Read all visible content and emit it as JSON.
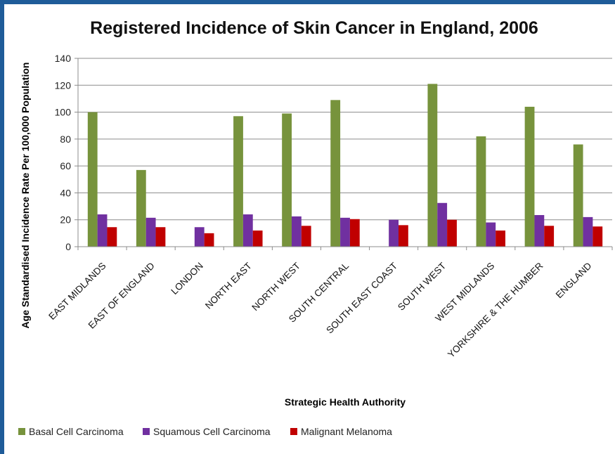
{
  "chart_data": {
    "type": "bar",
    "title": "Registered Incidence of Skin Cancer in England, 2006",
    "xlabel": "Strategic Health Authority",
    "ylabel": "Age Standardised Incidence Rate Per 100,000 Population",
    "ylim": [
      0,
      140
    ],
    "yticks": [
      0,
      20,
      40,
      60,
      80,
      100,
      120,
      140
    ],
    "grid": true,
    "legend_position": "bottom",
    "categories": [
      "EAST MIDLANDS",
      "EAST OF ENGLAND",
      "LONDON",
      "NORTH EAST",
      "NORTH WEST",
      "SOUTH CENTRAL",
      "SOUTH EAST COAST",
      "SOUTH WEST",
      "WEST MIDLANDS",
      "YORKSHIRE & THE HUMBER",
      "ENGLAND"
    ],
    "series": [
      {
        "name": "Basal Cell Carcinoma",
        "color": "#77933c",
        "values": [
          100,
          57,
          0,
          97,
          99,
          109,
          0,
          121,
          82,
          104,
          76
        ]
      },
      {
        "name": "Squamous Cell Carcinoma",
        "color": "#7030a0",
        "values": [
          24,
          21.5,
          14.5,
          24,
          22.5,
          21.5,
          20,
          32.5,
          18,
          23.5,
          22
        ]
      },
      {
        "name": "Malignant Melanoma",
        "color": "#c00000",
        "values": [
          14.5,
          14.5,
          10,
          12,
          15.5,
          20.5,
          16,
          20,
          12,
          15.5,
          15
        ]
      }
    ]
  }
}
